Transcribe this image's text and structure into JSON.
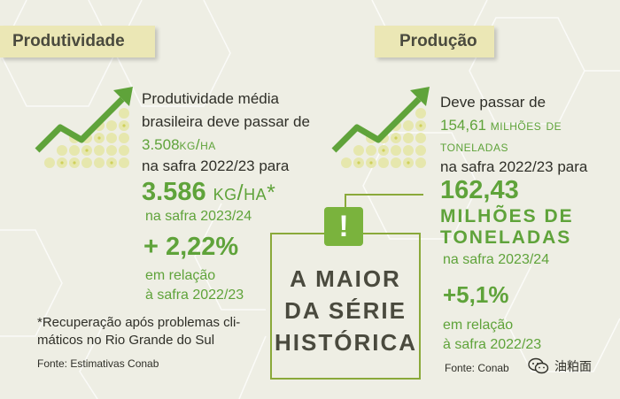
{
  "left": {
    "tab": "Produtividade",
    "line1": "Produtividade média",
    "line2": "brasileira deve passar de",
    "line3": "3.508",
    "line3_unit": "kg/ha",
    "line4": "na safra 2022/23 para",
    "big_value": "3.586",
    "big_unit": "kg/ha*",
    "season": "na safra 2023/24",
    "pct": "+ 2,22%",
    "rel1": "em relação",
    "rel2": "à safra 2022/23",
    "note1": "*Recuperação após problemas cli-",
    "note2": "máticos no Rio Grande do Sul",
    "source": "Fonte: Estimativas Conab"
  },
  "center": {
    "line1": "A MAIOR",
    "line2": "DA SÉRIE",
    "line3": "HISTÓRICA",
    "icon": "!"
  },
  "right": {
    "tab": "Produção",
    "line1": "Deve passar de",
    "line2_value": "154,61",
    "line2_unit": "milhões de",
    "line3_unit": "toneladas",
    "line4": "na safra 2022/23 para",
    "big_value": "162,43",
    "big_unit1": "MILHÕES DE",
    "big_unit2": "TONELADAS",
    "season": "na safra 2023/24",
    "pct": "+5,1%",
    "rel1": "em relação",
    "rel2": "à safra 2022/23",
    "source": "Fonte:  Conab"
  },
  "watermark": {
    "text": "油粕面"
  },
  "colors": {
    "accent_green": "#5fa33a",
    "tab_bg": "#ebe7b5",
    "background": "#eeeee4"
  }
}
